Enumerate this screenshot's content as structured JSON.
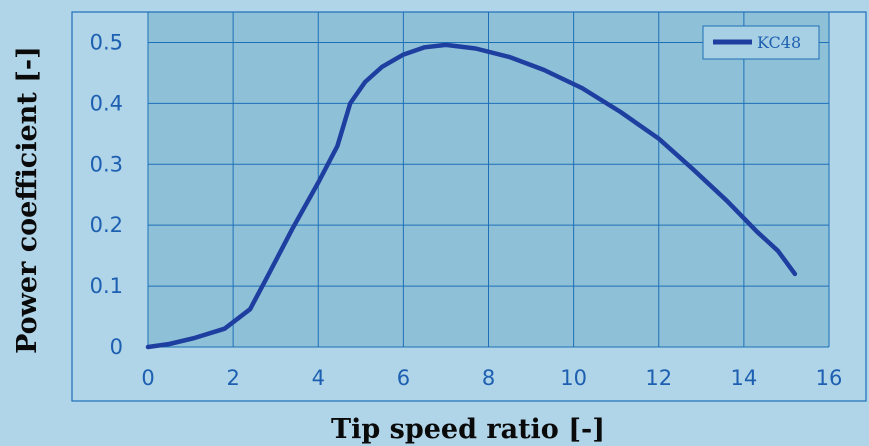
{
  "chart_data": {
    "type": "line",
    "title": "",
    "xlabel": "Tip speed ratio [-]",
    "ylabel": "Power coefficient [-]",
    "xlim": [
      0,
      16
    ],
    "ylim": [
      0,
      0.55
    ],
    "x_ticks": [
      0,
      2,
      4,
      6,
      8,
      10,
      12,
      14,
      16
    ],
    "y_ticks": [
      0,
      0.1,
      0.2,
      0.3,
      0.4,
      0.5
    ],
    "x_tick_labels": [
      "0",
      "2",
      "4",
      "6",
      "8",
      "10",
      "12",
      "14",
      "16"
    ],
    "y_tick_labels": [
      "0",
      "0.1",
      "0.2",
      "0.3",
      "0.4",
      "0.5"
    ],
    "grid": true,
    "legend_position": "top-right",
    "series": [
      {
        "name": "KC48",
        "x": [
          0,
          0.5,
          1.1,
          1.8,
          2.4,
          2.8,
          3.4,
          4.0,
          4.45,
          4.75,
          5.1,
          5.5,
          6.0,
          6.5,
          7.0,
          7.7,
          8.5,
          9.3,
          10.2,
          11.1,
          12.0,
          12.8,
          13.6,
          14.3,
          14.8,
          15.2
        ],
        "y": [
          0,
          0.005,
          0.015,
          0.03,
          0.062,
          0.115,
          0.195,
          0.27,
          0.33,
          0.4,
          0.435,
          0.46,
          0.48,
          0.492,
          0.496,
          0.49,
          0.476,
          0.455,
          0.425,
          0.386,
          0.342,
          0.292,
          0.24,
          0.19,
          0.158,
          0.12
        ]
      }
    ],
    "colors": {
      "background": "#b0d4e8",
      "plot_area": "#8ec1d8",
      "grid": "#1d6fb8",
      "line": "#1f3fa0",
      "tick_label": "#1d5fb0",
      "legend_bg": "#a8d0e4"
    }
  }
}
